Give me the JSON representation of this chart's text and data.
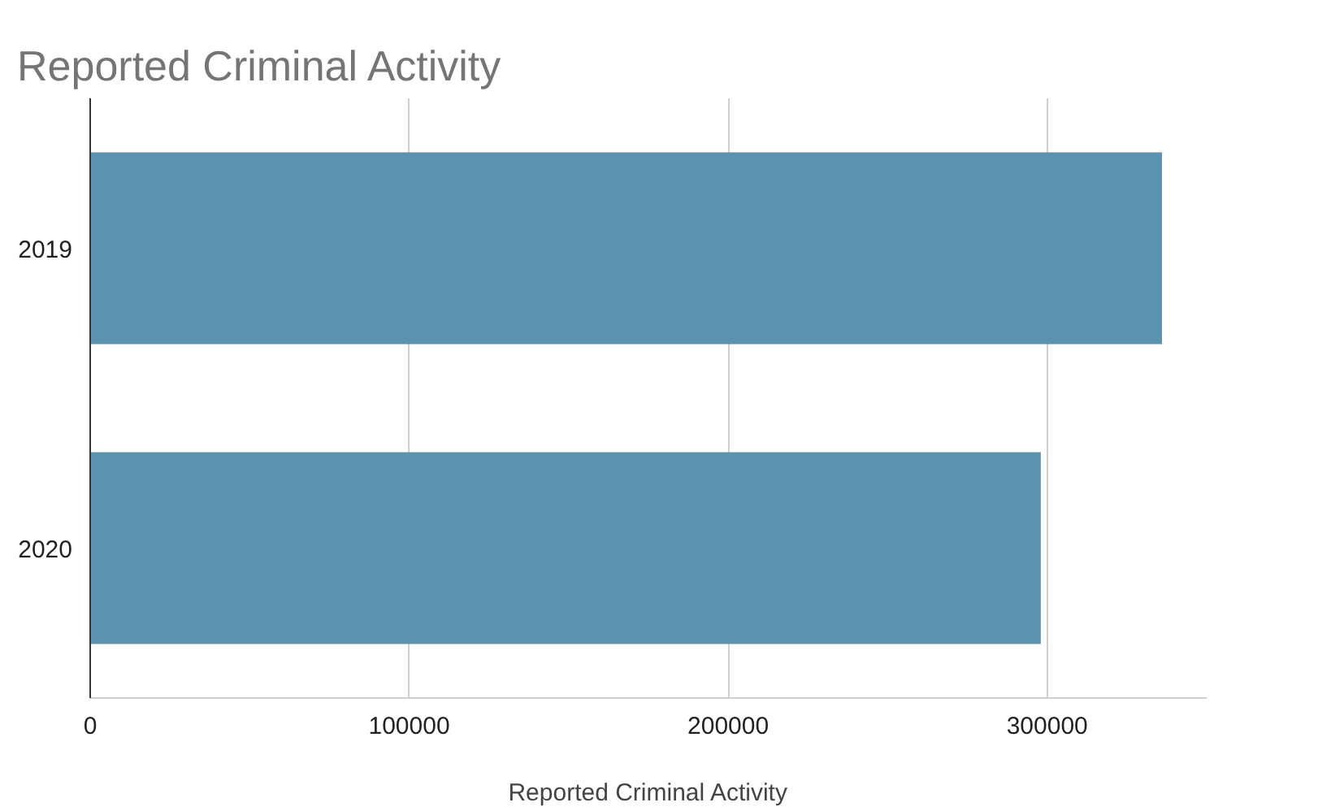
{
  "chart_data": {
    "type": "bar",
    "orientation": "horizontal",
    "title": "Reported Criminal Activity",
    "xlabel": "Reported Criminal Activity",
    "categories": [
      "2019",
      "2020"
    ],
    "values": [
      336000,
      298000
    ],
    "color": "#5a92af",
    "xlim": [
      0,
      350000
    ],
    "xticks": [
      0,
      100000,
      200000,
      300000
    ],
    "grid": "x"
  }
}
